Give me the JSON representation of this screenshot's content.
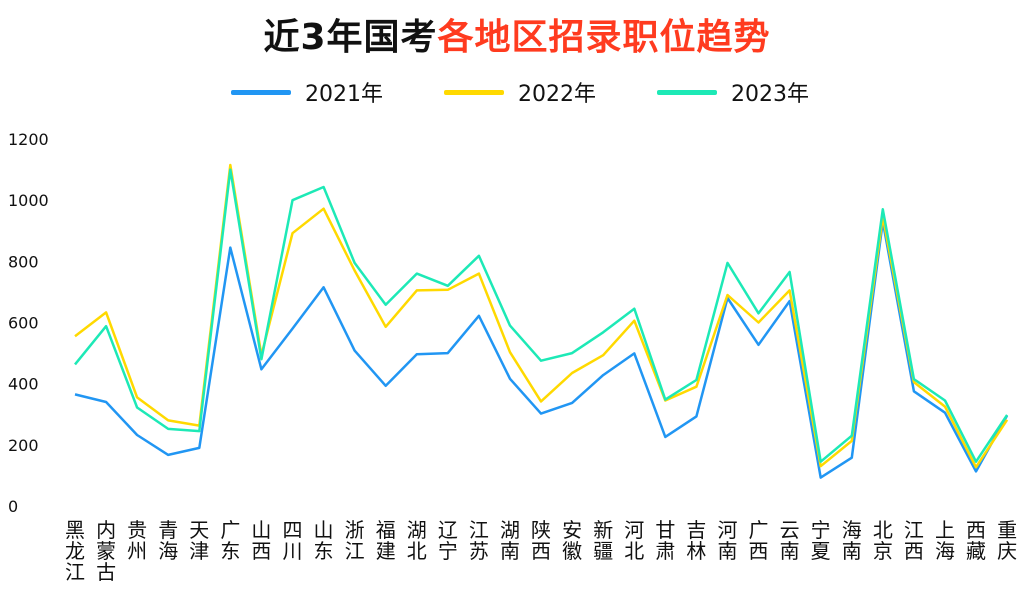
{
  "title": {
    "part1": "近3年国考",
    "part2": "各地区招录职位趋势"
  },
  "colors": {
    "title_accent": "#ff3b1f",
    "series": [
      "#2196f3",
      "#ffd900",
      "#1de9b6"
    ]
  },
  "chart_data": {
    "type": "line",
    "title": "近3年国考各地区招录职位趋势",
    "xlabel": "",
    "ylabel": "",
    "ylim": [
      0,
      1200
    ],
    "yticks": [
      0,
      200,
      400,
      600,
      800,
      1000,
      1200
    ],
    "grid": false,
    "legend_position": "top",
    "categories": [
      "黑龙江",
      "内蒙古",
      "贵州",
      "青海",
      "天津",
      "广东",
      "山西",
      "四川",
      "山东",
      "浙江",
      "福建",
      "湖北",
      "辽宁",
      "江苏",
      "湖南",
      "陕西",
      "安徽",
      "新疆",
      "河北",
      "甘肃",
      "吉林",
      "河南",
      "广西",
      "云南",
      "宁夏",
      "海南",
      "北京",
      "江西",
      "上海",
      "西藏",
      "重庆"
    ],
    "series": [
      {
        "name": "2021年",
        "values": [
          365,
          340,
          232,
          167,
          190,
          845,
          447,
          580,
          715,
          508,
          393,
          496,
          500,
          622,
          416,
          302,
          337,
          428,
          499,
          226,
          293,
          680,
          527,
          670,
          93,
          158,
          930,
          375,
          305,
          113,
          296
        ]
      },
      {
        "name": "2022年",
        "values": [
          555,
          633,
          355,
          280,
          263,
          1115,
          493,
          892,
          972,
          770,
          586,
          705,
          707,
          760,
          503,
          342,
          435,
          493,
          606,
          345,
          390,
          690,
          600,
          705,
          130,
          213,
          946,
          405,
          325,
          127,
          282
        ]
      },
      {
        "name": "2023年",
        "values": [
          463,
          588,
          322,
          252,
          245,
          1100,
          480,
          1000,
          1043,
          795,
          658,
          760,
          720,
          818,
          590,
          475,
          500,
          568,
          645,
          348,
          412,
          795,
          630,
          765,
          145,
          230,
          970,
          415,
          345,
          145,
          298
        ]
      }
    ]
  }
}
